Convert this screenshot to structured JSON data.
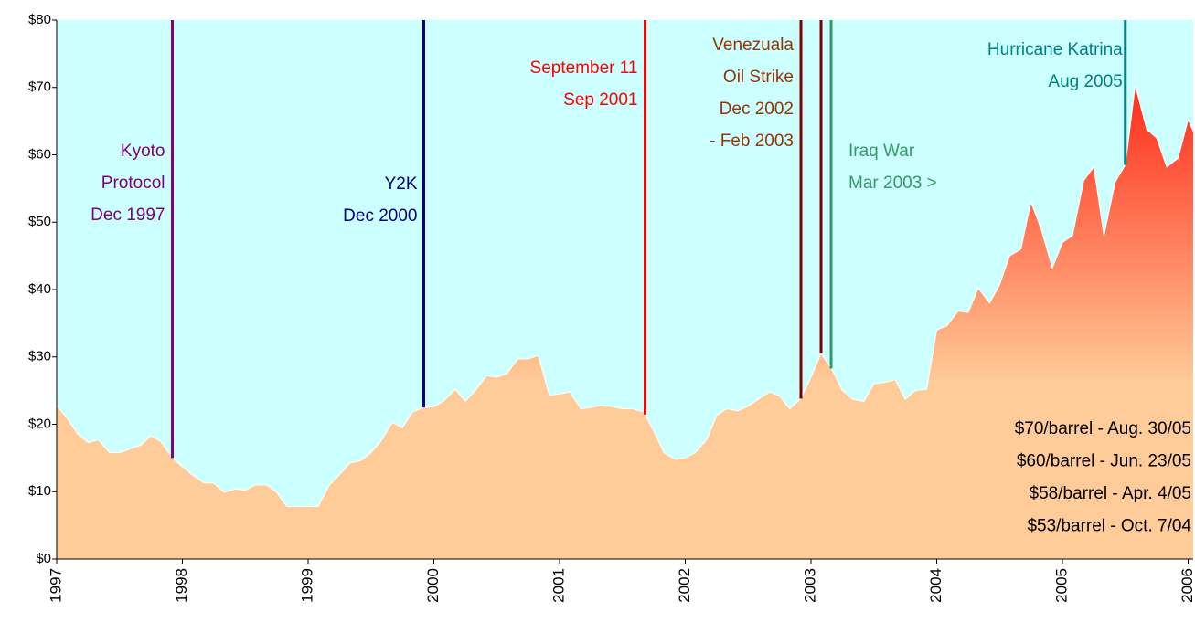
{
  "chart_data": {
    "type": "area",
    "x": [
      1997.0,
      1997.08,
      1997.17,
      1997.25,
      1997.33,
      1997.42,
      1997.5,
      1997.58,
      1997.67,
      1997.75,
      1997.83,
      1997.92,
      1998.0,
      1998.08,
      1998.17,
      1998.25,
      1998.33,
      1998.42,
      1998.5,
      1998.58,
      1998.67,
      1998.75,
      1998.83,
      1998.92,
      1999.0,
      1999.08,
      1999.17,
      1999.25,
      1999.33,
      1999.42,
      1999.5,
      1999.58,
      1999.67,
      1999.75,
      1999.83,
      1999.92,
      2000.0,
      2000.08,
      2000.17,
      2000.25,
      2000.33,
      2000.42,
      2000.5,
      2000.58,
      2000.67,
      2000.75,
      2000.83,
      2000.92,
      2001.0,
      2001.08,
      2001.17,
      2001.25,
      2001.33,
      2001.42,
      2001.5,
      2001.58,
      2001.67,
      2001.75,
      2001.83,
      2001.92,
      2002.0,
      2002.08,
      2002.17,
      2002.25,
      2002.33,
      2002.42,
      2002.5,
      2002.58,
      2002.67,
      2002.75,
      2002.83,
      2002.92,
      2003.0,
      2003.08,
      2003.17,
      2003.25,
      2003.33,
      2003.42,
      2003.5,
      2003.58,
      2003.67,
      2003.75,
      2003.83,
      2003.92,
      2004.0,
      2004.08,
      2004.17,
      2004.25,
      2004.33,
      2004.42,
      2004.5,
      2004.58,
      2004.67,
      2004.75,
      2004.83,
      2004.92,
      2005.0,
      2005.08,
      2005.17,
      2005.25,
      2005.33,
      2005.42,
      2005.5,
      2005.58,
      2005.67,
      2005.75,
      2005.83,
      2005.92,
      2006.0,
      2006.04
    ],
    "values": [
      22.7,
      21,
      18.5,
      17.3,
      17.7,
      15.8,
      15.8,
      16.3,
      16.9,
      18.3,
      17.4,
      15,
      13.7,
      12.5,
      11.3,
      11.3,
      9.9,
      10.4,
      10.2,
      11,
      11,
      9.9,
      7.8,
      7.8,
      7.8,
      7.8,
      11,
      12.5,
      14.2,
      14.6,
      15.8,
      17.5,
      20.3,
      19.5,
      21.8,
      22.5,
      22.6,
      23.5,
      25.2,
      23.4,
      25,
      27.2,
      27,
      27.5,
      29.7,
      29.7,
      30.2,
      24.3,
      24.5,
      24.8,
      22.3,
      22.5,
      22.8,
      22.6,
      22.3,
      22.3,
      21.8,
      19,
      15.8,
      14.8,
      15,
      15.8,
      17.7,
      21.3,
      22.3,
      22,
      22.7,
      23.7,
      24.8,
      24.2,
      22.3,
      23.8,
      27,
      30.5,
      28,
      25,
      23.7,
      23.4,
      26,
      26.2,
      26.6,
      23.7,
      25,
      25.2,
      34,
      34.6,
      36.8,
      36.6,
      40.2,
      38,
      40.7,
      45,
      46,
      53,
      49,
      43.2,
      47,
      48,
      56.2,
      58.2,
      48,
      56,
      58.5,
      70.3,
      63.8,
      62.5,
      58.2,
      59.5,
      65.2,
      63.5
    ],
    "gradient": [
      "#ff2e1c",
      "#ffcc99"
    ],
    "background": "#ccffff",
    "xlim": [
      1997,
      2006.04
    ],
    "xticks": [
      1997,
      1998,
      1999,
      2000,
      2001,
      2002,
      2003,
      2004,
      2005,
      2006
    ],
    "ylim": [
      0,
      80
    ],
    "yticks": [
      {
        "value": 0,
        "label": "$0"
      },
      {
        "value": 10,
        "label": "$10"
      },
      {
        "value": 20,
        "label": "$20"
      },
      {
        "value": 30,
        "label": "$30"
      },
      {
        "value": 40,
        "label": "$40"
      },
      {
        "value": 50,
        "label": "$50"
      },
      {
        "value": 60,
        "label": "$60"
      },
      {
        "value": 70,
        "label": "$70"
      },
      {
        "value": 80,
        "label": "$80"
      }
    ],
    "events": [
      {
        "lines": [
          "Kyoto",
          "Protocol",
          "Dec 1997"
        ],
        "x": [
          1997.92
        ],
        "color": "#800080"
      },
      {
        "lines": [
          "Y2K",
          "Dec 2000"
        ],
        "x": [
          1999.92
        ],
        "color": "#000080"
      },
      {
        "lines": [
          "September 11",
          "Sep 2001"
        ],
        "x": [
          2001.68
        ],
        "color": "#ff0000"
      },
      {
        "lines": [
          "Venezuala",
          "Oil Strike",
          "Dec 2002",
          "- Feb 2003"
        ],
        "x": [
          2002.92,
          2003.08
        ],
        "color": "#800000",
        "text_color": "#993300"
      },
      {
        "lines": [
          "Iraq War",
          "Mar 2003 >"
        ],
        "x": [
          2003.16
        ],
        "color": "#339966"
      },
      {
        "lines": [
          "Hurricane Katrina",
          "Aug 2005"
        ],
        "x": [
          2005.5
        ],
        "color": "#008080"
      }
    ],
    "annotations": [
      "$70/barrel - Aug. 30/05",
      "$60/barrel - Jun. 23/05",
      "$58/barrel - Apr. 4/05",
      "$53/barrel - Oct. 7/04"
    ]
  }
}
